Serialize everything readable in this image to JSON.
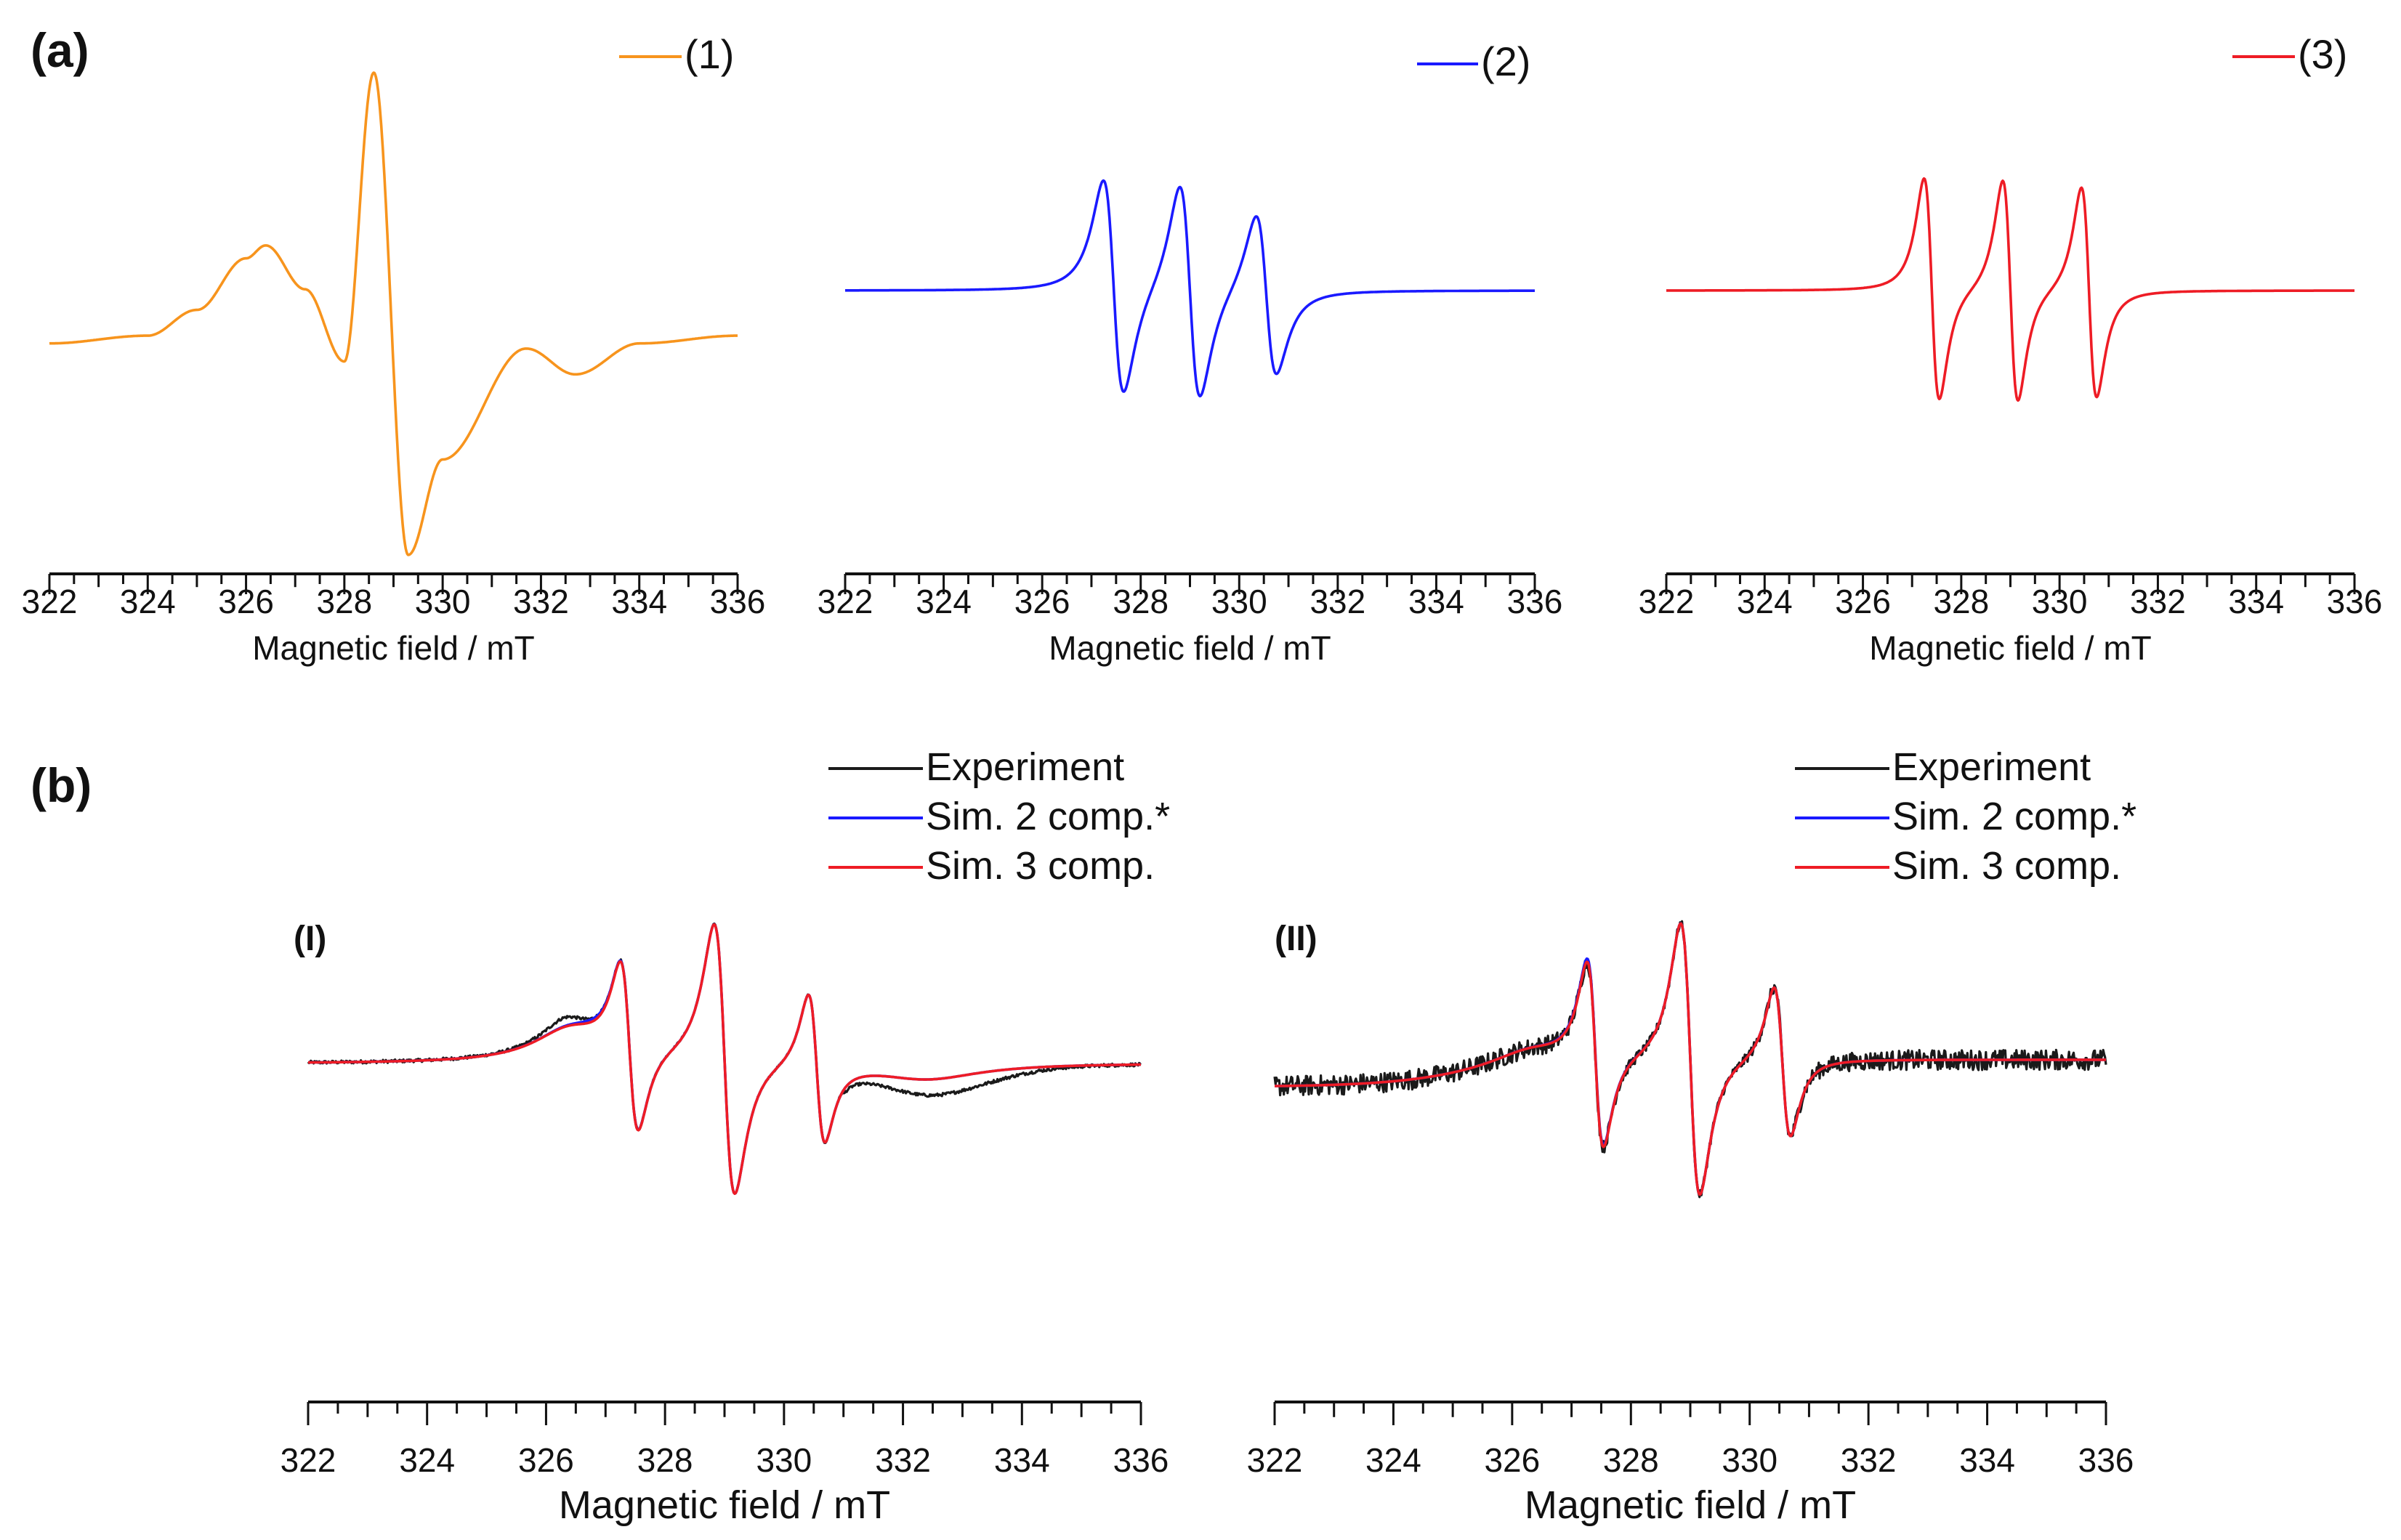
{
  "panel_labels": {
    "a": "(a)",
    "b": "(b)"
  },
  "colors": {
    "orange": "#f7941d",
    "blue": "#1a1aff",
    "red": "#ee1c25",
    "black": "#1a1a1a"
  },
  "chart_data": [
    {
      "type": "line",
      "id": "a1",
      "xlabel": "Magnetic field / mT",
      "xlim": [
        322,
        336
      ],
      "xticks": [
        322,
        324,
        326,
        328,
        330,
        332,
        334,
        336
      ],
      "legend": [
        {
          "label": "(1)",
          "color": "#f7941d"
        }
      ],
      "series": [
        {
          "name": "(1)",
          "color": "#f7941d",
          "model": "broad single-component spectrum",
          "x": [
            322,
            324,
            325,
            326,
            326.4,
            327.2,
            328.0,
            328.6,
            329.3,
            330.0,
            331.7,
            332.7,
            334,
            336
          ],
          "y": [
            -0.05,
            -0.02,
            0.08,
            0.28,
            0.33,
            0.16,
            -0.12,
            1.0,
            -0.87,
            -0.5,
            -0.07,
            -0.17,
            -0.05,
            -0.02
          ]
        }
      ]
    },
    {
      "type": "line",
      "id": "a2",
      "xlabel": "Magnetic field / mT",
      "xlim": [
        322,
        336
      ],
      "xticks": [
        322,
        324,
        326,
        328,
        330,
        332,
        334,
        336
      ],
      "legend": [
        {
          "label": "(2)",
          "color": "#1a1aff"
        }
      ],
      "series": [
        {
          "name": "(2)",
          "color": "#1a1aff",
          "model": "three-line spectrum",
          "centers": [
            327.45,
            329.0,
            330.55
          ],
          "amplitudes": [
            1.0,
            1.0,
            0.75
          ],
          "linewidth": 0.36
        }
      ]
    },
    {
      "type": "line",
      "id": "a3",
      "xlabel": "Magnetic field / mT",
      "xlim": [
        322,
        336
      ],
      "xticks": [
        322,
        324,
        326,
        328,
        330,
        332,
        334,
        336
      ],
      "legend": [
        {
          "label": "(3)",
          "color": "#ee1c25"
        }
      ],
      "series": [
        {
          "name": "(3)",
          "color": "#ee1c25",
          "model": "three-line spectrum",
          "centers": [
            327.4,
            329.0,
            330.6
          ],
          "amplitudes": [
            1.0,
            1.0,
            0.95
          ],
          "linewidth": 0.27
        }
      ]
    },
    {
      "type": "line",
      "id": "b1",
      "tag": "(I)",
      "xlabel": "Magnetic field / mT",
      "xlim": [
        322,
        336
      ],
      "xticks": [
        322,
        324,
        326,
        328,
        330,
        332,
        334,
        336
      ],
      "legend": [
        {
          "label": "Experiment",
          "color": "#1a1a1a"
        },
        {
          "label": "Sim. 2 comp.*",
          "color": "#1a1aff"
        },
        {
          "label": "Sim. 3 comp.",
          "color": "#ee1c25"
        }
      ],
      "series": [
        {
          "name": "Experiment",
          "color": "#1a1a1a",
          "model": "fit",
          "noise": 0.004,
          "extra": "shoulder 326.3 mT; baseline dip 331-334 mT"
        },
        {
          "name": "Sim. 2 comp.*",
          "color": "#1a1aff",
          "model": "fit"
        },
        {
          "name": "Sim. 3 comp.",
          "color": "#ee1c25",
          "model": "fit"
        }
      ]
    },
    {
      "type": "line",
      "id": "b2",
      "tag": "(II)",
      "xlabel": "Magnetic field / mT",
      "xlim": [
        322,
        336
      ],
      "xticks": [
        322,
        324,
        326,
        328,
        330,
        332,
        334,
        336
      ],
      "legend": [
        {
          "label": "Experiment",
          "color": "#1a1a1a"
        },
        {
          "label": "Sim. 2 comp.*",
          "color": "#1a1aff"
        },
        {
          "label": "Sim. 3 comp.",
          "color": "#ee1c25"
        }
      ],
      "series": [
        {
          "name": "Experiment",
          "color": "#1a1a1a",
          "model": "fit",
          "noise": 0.025
        },
        {
          "name": "Sim. 2 comp.*",
          "color": "#1a1aff",
          "model": "fit"
        },
        {
          "name": "Sim. 3 comp.",
          "color": "#ee1c25",
          "model": "fit"
        }
      ]
    }
  ]
}
